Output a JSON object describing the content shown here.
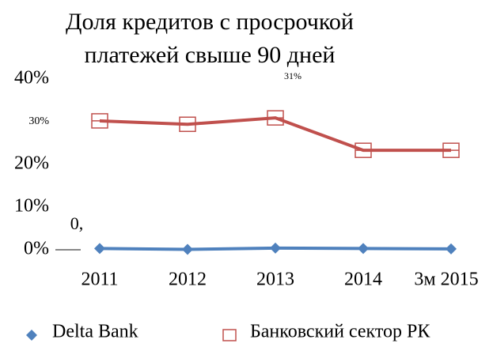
{
  "chart_data": {
    "type": "line",
    "title": [
      "Доля кредитов с просрочкой",
      "платежей свыше 90 дней"
    ],
    "categories": [
      "2011",
      "2012",
      "2013",
      "2014",
      "3м 2015"
    ],
    "series": [
      {
        "name": "Delta Bank",
        "color": "#4f81bd",
        "marker": "diamond",
        "values": [
          0.3,
          0.1,
          0.4,
          0.3,
          0.2
        ]
      },
      {
        "name": "Банковский сектор РК",
        "color": "#c0504d",
        "marker": "square",
        "values": [
          30.2,
          29.4,
          30.9,
          23.3,
          23.3
        ]
      }
    ],
    "annotations": [
      "31%",
      "0,"
    ],
    "ylim": [
      0,
      40
    ],
    "yticks": [
      {
        "value": 0,
        "label": "0%"
      },
      {
        "value": 10,
        "label": "10%"
      },
      {
        "value": 20,
        "label": "20%"
      },
      {
        "value": 30,
        "label": "30%"
      },
      {
        "value": 40,
        "label": "40%"
      }
    ],
    "legend": "bottom"
  }
}
